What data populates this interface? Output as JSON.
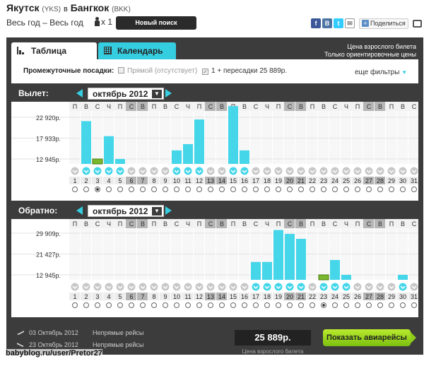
{
  "header": {
    "from_city": "Якутск",
    "from_code": "(YKS)",
    "connector": "в",
    "to_city": "Бангкок",
    "to_code": "(BKK)",
    "period": "Весь год – Весь год",
    "passengers": "x 1",
    "new_search": "Новый поиск",
    "share": "Поделиться",
    "social_icons": [
      "facebook-icon",
      "vkontakte-icon",
      "twitter-icon",
      "email-icon"
    ]
  },
  "tabs": [
    {
      "label": "Таблица",
      "icon": "bar-chart-icon",
      "active": true
    },
    {
      "label": "Календарь",
      "icon": "calendar-grid-icon",
      "active": false
    }
  ],
  "notice": {
    "line1": "Цена взрослого билета",
    "line2": "Только ориентировочные цены"
  },
  "filters": {
    "label": "Промежуточные посадки:",
    "direct": "Прямой (отсутствует)",
    "transfers": "1 + пересадки 25 889р.",
    "more": "еще фильтры"
  },
  "colors": {
    "bar": "#45d6ea",
    "selected": "#78b82a",
    "frame": "#3c3c3c",
    "weekend_header": "#b5b5b5"
  },
  "weekdays": [
    "П",
    "В",
    "С",
    "Ч",
    "П",
    "С",
    "В",
    "П",
    "В",
    "С",
    "Ч",
    "П",
    "С",
    "В",
    "П",
    "В",
    "С",
    "Ч",
    "П",
    "С",
    "В",
    "П",
    "В",
    "С",
    "Ч",
    "П",
    "С",
    "В",
    "П",
    "В",
    "С"
  ],
  "days": [
    "1",
    "2",
    "3",
    "4",
    "5",
    "6",
    "7",
    "8",
    "9",
    "10",
    "11",
    "12",
    "13",
    "14",
    "15",
    "16",
    "17",
    "18",
    "19",
    "20",
    "21",
    "22",
    "23",
    "24",
    "25",
    "26",
    "27",
    "28",
    "29",
    "30",
    "31"
  ],
  "chart_data": [
    {
      "type": "bar",
      "title": "Вылет:",
      "month": "октябрь 2012",
      "yticks": [
        "22 920р.",
        "17 933р.",
        "12 945р."
      ],
      "categories": [
        "1",
        "2",
        "3",
        "4",
        "5",
        "6",
        "7",
        "8",
        "9",
        "10",
        "11",
        "12",
        "13",
        "14",
        "15",
        "16",
        "17",
        "18",
        "19",
        "20",
        "21",
        "22",
        "23",
        "24",
        "25",
        "26",
        "27",
        "28",
        "29",
        "30",
        "31"
      ],
      "values": [
        null,
        22000,
        12945,
        18400,
        12945,
        null,
        null,
        null,
        null,
        15000,
        16500,
        22400,
        null,
        null,
        25600,
        15000,
        null,
        null,
        null,
        null,
        null,
        null,
        null,
        null,
        null,
        null,
        null,
        null,
        null,
        null,
        null
      ],
      "selected_day": "3",
      "weekend_days": [
        "6",
        "7",
        "13",
        "14",
        "20",
        "21",
        "27",
        "28"
      ]
    },
    {
      "type": "bar",
      "title": "Обратно:",
      "month": "октябрь 2012",
      "yticks": [
        "29 909р.",
        "21 427р.",
        "12 945р."
      ],
      "categories": [
        "1",
        "2",
        "3",
        "4",
        "5",
        "6",
        "7",
        "8",
        "9",
        "10",
        "11",
        "12",
        "13",
        "14",
        "15",
        "16",
        "17",
        "18",
        "19",
        "20",
        "21",
        "22",
        "23",
        "24",
        "25",
        "26",
        "27",
        "28",
        "29",
        "30",
        "31"
      ],
      "values": [
        null,
        null,
        null,
        null,
        null,
        null,
        null,
        null,
        null,
        null,
        null,
        null,
        null,
        null,
        null,
        null,
        18200,
        18200,
        31200,
        29600,
        27600,
        null,
        12945,
        19000,
        12945,
        null,
        null,
        null,
        null,
        12945,
        null
      ],
      "selected_day": "23",
      "weekend_days": [
        "6",
        "7",
        "13",
        "14",
        "20",
        "21",
        "27",
        "28"
      ]
    }
  ],
  "footer": {
    "out_date": "03 Октябрь 2012",
    "back_date": "23 Октябрь 2012",
    "out_type": "Непрямые рейсы",
    "back_type": "Непрямые рейсы",
    "price": "25 889р.",
    "price_label": "Цена взрослого билета",
    "show_button": "Показать авиарейсы"
  },
  "watermark": "babyblog.ru/user/Pretor27"
}
